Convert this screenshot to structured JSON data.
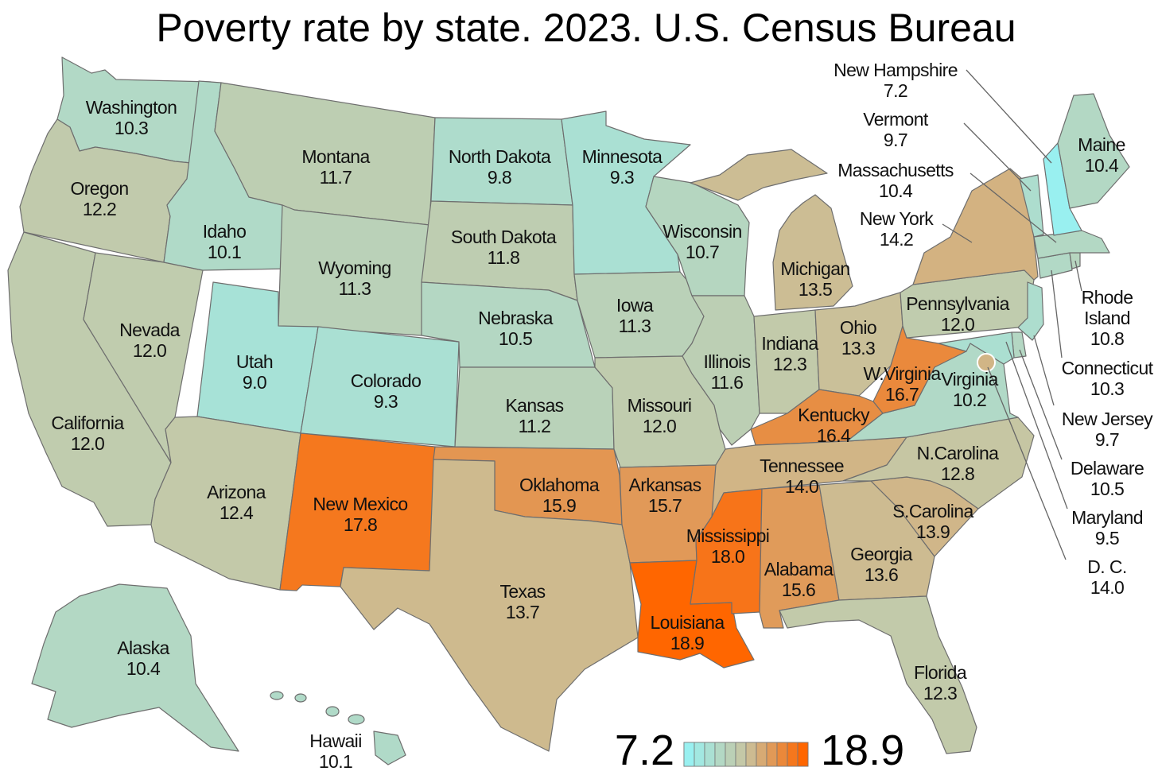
{
  "title": "Poverty rate by state. 2023. U.S. Census Bureau",
  "legend": {
    "min": "7.2",
    "max": "18.9",
    "min_color": "#99f0f0",
    "max_color": "#ff6600"
  },
  "states": {
    "WA": {
      "name": "Washington",
      "value": "10.3"
    },
    "OR": {
      "name": "Oregon",
      "value": "12.2"
    },
    "CA": {
      "name": "California",
      "value": "12.0"
    },
    "NV": {
      "name": "Nevada",
      "value": "12.0"
    },
    "ID": {
      "name": "Idaho",
      "value": "10.1"
    },
    "MT": {
      "name": "Montana",
      "value": "11.7"
    },
    "WY": {
      "name": "Wyoming",
      "value": "11.3"
    },
    "UT": {
      "name": "Utah",
      "value": "9.0"
    },
    "AZ": {
      "name": "Arizona",
      "value": "12.4"
    },
    "CO": {
      "name": "Colorado",
      "value": "9.3"
    },
    "NM": {
      "name": "New Mexico",
      "value": "17.8"
    },
    "ND": {
      "name": "North Dakota",
      "value": "9.8"
    },
    "SD": {
      "name": "South Dakota",
      "value": "11.8"
    },
    "NE": {
      "name": "Nebraska",
      "value": "10.5"
    },
    "KS": {
      "name": "Kansas",
      "value": "11.2"
    },
    "OK": {
      "name": "Oklahoma",
      "value": "15.9"
    },
    "TX": {
      "name": "Texas",
      "value": "13.7"
    },
    "MN": {
      "name": "Minnesota",
      "value": "9.3"
    },
    "IA": {
      "name": "Iowa",
      "value": "11.3"
    },
    "MO": {
      "name": "Missouri",
      "value": "12.0"
    },
    "AR": {
      "name": "Arkansas",
      "value": "15.7"
    },
    "LA": {
      "name": "Louisiana",
      "value": "18.9"
    },
    "WI": {
      "name": "Wisconsin",
      "value": "10.7"
    },
    "IL": {
      "name": "Illinois",
      "value": "11.6"
    },
    "MI": {
      "name": "Michigan",
      "value": "13.5"
    },
    "IN": {
      "name": "Indiana",
      "value": "12.3"
    },
    "OH": {
      "name": "Ohio",
      "value": "13.3"
    },
    "KY": {
      "name": "Kentucky",
      "value": "16.4"
    },
    "TN": {
      "name": "Tennessee",
      "value": "14.0"
    },
    "MS": {
      "name": "Mississippi",
      "value": "18.0"
    },
    "AL": {
      "name": "Alabama",
      "value": "15.6"
    },
    "GA": {
      "name": "Georgia",
      "value": "13.6"
    },
    "FL": {
      "name": "Florida",
      "value": "12.3"
    },
    "SC": {
      "name": "S.Carolina",
      "value": "13.9"
    },
    "NC": {
      "name": "N.Carolina",
      "value": "12.8"
    },
    "VA": {
      "name": "Virginia",
      "value": "10.2"
    },
    "WV": {
      "name": "W.Virginia",
      "value": "16.7"
    },
    "PA": {
      "name": "Pennsylvania",
      "value": "12.0"
    },
    "NY": {
      "name": "New York",
      "value": "14.2"
    },
    "ME": {
      "name": "Maine",
      "value": "10.4"
    },
    "AK": {
      "name": "Alaska",
      "value": "10.4"
    },
    "HI": {
      "name": "Hawaii",
      "value": "10.1"
    },
    "NH": {
      "name": "New Hampshire",
      "value": "7.2"
    },
    "VT": {
      "name": "Vermont",
      "value": "9.7"
    },
    "MA": {
      "name": "Massachusetts",
      "value": "10.4"
    },
    "RI": {
      "name1": "Rhode",
      "name2": "Island",
      "value": "10.8"
    },
    "CT": {
      "name": "Connecticut",
      "value": "10.3"
    },
    "NJ": {
      "name": "New Jersey",
      "value": "9.7"
    },
    "DE": {
      "name": "Delaware",
      "value": "10.5"
    },
    "MD": {
      "name": "Maryland",
      "value": "9.5"
    },
    "DC": {
      "name": "D. C.",
      "value": "14.0"
    }
  }
}
